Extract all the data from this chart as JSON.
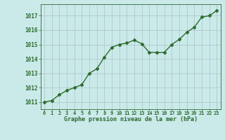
{
  "x": [
    0,
    1,
    2,
    3,
    4,
    5,
    6,
    7,
    8,
    9,
    10,
    11,
    12,
    13,
    14,
    15,
    16,
    17,
    18,
    19,
    20,
    21,
    22,
    23
  ],
  "y": [
    1011.0,
    1011.1,
    1011.5,
    1011.8,
    1012.0,
    1012.2,
    1013.0,
    1013.3,
    1014.1,
    1014.8,
    1015.0,
    1015.1,
    1015.3,
    1015.05,
    1014.45,
    1014.45,
    1014.45,
    1015.0,
    1015.35,
    1015.85,
    1016.2,
    1016.9,
    1017.0,
    1017.35
  ],
  "line_color": "#2d6a2d",
  "marker": "D",
  "marker_size": 2.5,
  "bg_color": "#caeaea",
  "grid_color": "#b0c8c8",
  "xlabel": "Graphe pression niveau de la mer (hPa)",
  "tick_color": "#2d6a2d",
  "ylim": [
    1010.5,
    1017.8
  ],
  "yticks": [
    1011,
    1012,
    1013,
    1014,
    1015,
    1016,
    1017
  ],
  "xticks": [
    0,
    1,
    2,
    3,
    4,
    5,
    6,
    7,
    8,
    9,
    10,
    11,
    12,
    13,
    14,
    15,
    16,
    17,
    18,
    19,
    20,
    21,
    22,
    23
  ],
  "line_width": 1.0
}
